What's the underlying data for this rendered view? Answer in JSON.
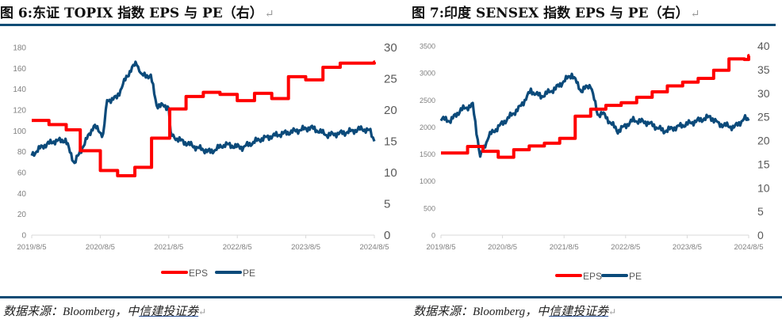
{
  "colors": {
    "eps": "#ff0000",
    "pe": "#0b4a7a",
    "rule": "#0f4c75",
    "axis": "#d9d9d9",
    "tick_text": "#7f7f7f"
  },
  "left": {
    "title_prefix": "图 6:",
    "title": "东证 TOPIX 指数 EPS 与 PE（右）",
    "source": "数据来源：Bloomberg，中",
    "source_underlined": "信建投证券"
  },
  "right": {
    "title_prefix": "图 7:",
    "title": "印度 SENSEX 指数 EPS 与 PE（右）",
    "source": "数据来源：Bloomberg，中",
    "source_underlined": "信建投证券"
  },
  "chart_data": [
    {
      "type": "line",
      "x_ticks": [
        "2019/8/5",
        "2020/8/5",
        "2021/8/5",
        "2022/8/5",
        "2023/8/5",
        "2024/8/5"
      ],
      "xlim": [
        "2019-08-05",
        "2024-08-05"
      ],
      "y_left": {
        "lim": [
          0,
          180
        ],
        "ticks": [
          "0",
          "20",
          "40",
          "60",
          "80",
          "100",
          "120",
          "140",
          "160",
          "180"
        ]
      },
      "y_right": {
        "lim": [
          0,
          30
        ],
        "ticks": [
          "0",
          "5",
          "10",
          "15",
          "20",
          "25",
          "30"
        ]
      },
      "legend": {
        "position": "bottom",
        "entries": [
          "EPS",
          "PE"
        ]
      },
      "grid": false,
      "series": [
        {
          "name": "EPS",
          "axis": "left",
          "step": true,
          "points": [
            [
              "2019-08-05",
              110
            ],
            [
              "2019-11-05",
              106
            ],
            [
              "2020-02-05",
              101
            ],
            [
              "2020-04-20",
              81
            ],
            [
              "2020-08-05",
              62
            ],
            [
              "2020-11-05",
              57
            ],
            [
              "2021-02-05",
              65
            ],
            [
              "2021-05-05",
              93
            ],
            [
              "2021-08-10",
              121
            ],
            [
              "2021-11-05",
              133
            ],
            [
              "2022-02-05",
              137
            ],
            [
              "2022-05-05",
              135
            ],
            [
              "2022-08-05",
              129
            ],
            [
              "2022-11-05",
              136
            ],
            [
              "2023-02-05",
              131
            ],
            [
              "2023-05-05",
              152
            ],
            [
              "2023-08-05",
              149
            ],
            [
              "2023-11-05",
              161
            ],
            [
              "2024-02-05",
              165
            ],
            [
              "2024-08-05",
              166
            ]
          ]
        },
        {
          "name": "PE",
          "axis": "right",
          "step": false,
          "points": [
            [
              "2019-08-05",
              12.8
            ],
            [
              "2019-10-01",
              14.2
            ],
            [
              "2019-12-01",
              15
            ],
            [
              "2020-02-01",
              15.2
            ],
            [
              "2020-03-20",
              11.5
            ],
            [
              "2020-05-01",
              14
            ],
            [
              "2020-07-01",
              17.5
            ],
            [
              "2020-08-20",
              16
            ],
            [
              "2020-09-10",
              21.5
            ],
            [
              "2020-11-01",
              22
            ],
            [
              "2020-12-10",
              24.5
            ],
            [
              "2021-01-15",
              26.5
            ],
            [
              "2021-02-15",
              27.5
            ],
            [
              "2021-03-15",
              25.5
            ],
            [
              "2021-05-01",
              25.5
            ],
            [
              "2021-06-01",
              20.8
            ],
            [
              "2021-08-05",
              20.5
            ],
            [
              "2021-08-15",
              16
            ],
            [
              "2021-10-01",
              15.2
            ],
            [
              "2022-01-01",
              14
            ],
            [
              "2022-03-15",
              13.3
            ],
            [
              "2022-06-01",
              14.5
            ],
            [
              "2022-09-01",
              14
            ],
            [
              "2022-12-01",
              15.3
            ],
            [
              "2023-03-01",
              16
            ],
            [
              "2023-06-01",
              16.6
            ],
            [
              "2023-09-01",
              17.2
            ],
            [
              "2023-12-01",
              16
            ],
            [
              "2024-03-01",
              16.4
            ],
            [
              "2024-06-01",
              17
            ],
            [
              "2024-07-15",
              16.6
            ],
            [
              "2024-08-05",
              15
            ]
          ]
        }
      ]
    },
    {
      "type": "line",
      "x_ticks": [
        "2019/8/5",
        "2020/8/5",
        "2021/8/5",
        "2022/8/5",
        "2023/8/5",
        "2024/8/5"
      ],
      "xlim": [
        "2019-08-05",
        "2024-08-05"
      ],
      "y_left": {
        "lim": [
          0,
          3500
        ],
        "ticks": [
          "0",
          "500",
          "1000",
          "1500",
          "2000",
          "2500",
          "3000",
          "3500"
        ]
      },
      "y_right": {
        "lim": [
          0,
          40
        ],
        "ticks": [
          "0",
          "5",
          "10",
          "15",
          "20",
          "25",
          "30",
          "35",
          "40"
        ]
      },
      "legend": {
        "position": "bottom",
        "entries": [
          "EPS",
          "PE"
        ]
      },
      "grid": false,
      "series": [
        {
          "name": "EPS",
          "axis": "left",
          "step": true,
          "points": [
            [
              "2019-08-05",
              1520
            ],
            [
              "2020-01-10",
              1640
            ],
            [
              "2020-04-10",
              1550
            ],
            [
              "2020-07-10",
              1440
            ],
            [
              "2020-10-10",
              1580
            ],
            [
              "2021-01-10",
              1650
            ],
            [
              "2021-04-10",
              1700
            ],
            [
              "2021-07-10",
              1790
            ],
            [
              "2021-10-10",
              2200
            ],
            [
              "2022-01-10",
              2330
            ],
            [
              "2022-04-10",
              2400
            ],
            [
              "2022-07-10",
              2450
            ],
            [
              "2022-10-10",
              2550
            ],
            [
              "2023-01-10",
              2650
            ],
            [
              "2023-04-10",
              2760
            ],
            [
              "2023-07-10",
              2830
            ],
            [
              "2023-10-10",
              2900
            ],
            [
              "2024-01-10",
              3050
            ],
            [
              "2024-04-10",
              3260
            ],
            [
              "2024-07-10",
              3250
            ],
            [
              "2024-08-05",
              3320
            ]
          ]
        },
        {
          "name": "PE",
          "axis": "right",
          "step": false,
          "points": [
            [
              "2019-08-05",
              24.6
            ],
            [
              "2019-10-01",
              24.2
            ],
            [
              "2019-12-01",
              26.5
            ],
            [
              "2020-02-10",
              27.5
            ],
            [
              "2020-03-25",
              16.5
            ],
            [
              "2020-05-15",
              21
            ],
            [
              "2020-08-15",
              24
            ],
            [
              "2020-11-15",
              27
            ],
            [
              "2021-01-20",
              30.5
            ],
            [
              "2021-03-20",
              29.3
            ],
            [
              "2021-06-15",
              31
            ],
            [
              "2021-09-20",
              34
            ],
            [
              "2021-11-15",
              30.5
            ],
            [
              "2022-01-10",
              31.8
            ],
            [
              "2022-02-20",
              25.5
            ],
            [
              "2022-03-20",
              25.8
            ],
            [
              "2022-06-20",
              22
            ],
            [
              "2022-09-20",
              24.3
            ],
            [
              "2022-12-15",
              23.8
            ],
            [
              "2023-03-20",
              22
            ],
            [
              "2023-06-20",
              23
            ],
            [
              "2023-09-20",
              24
            ],
            [
              "2023-12-20",
              25
            ],
            [
              "2024-02-10",
              23.5
            ],
            [
              "2024-05-10",
              22.8
            ],
            [
              "2024-07-15",
              24.7
            ],
            [
              "2024-08-05",
              24.2
            ]
          ]
        }
      ]
    }
  ]
}
